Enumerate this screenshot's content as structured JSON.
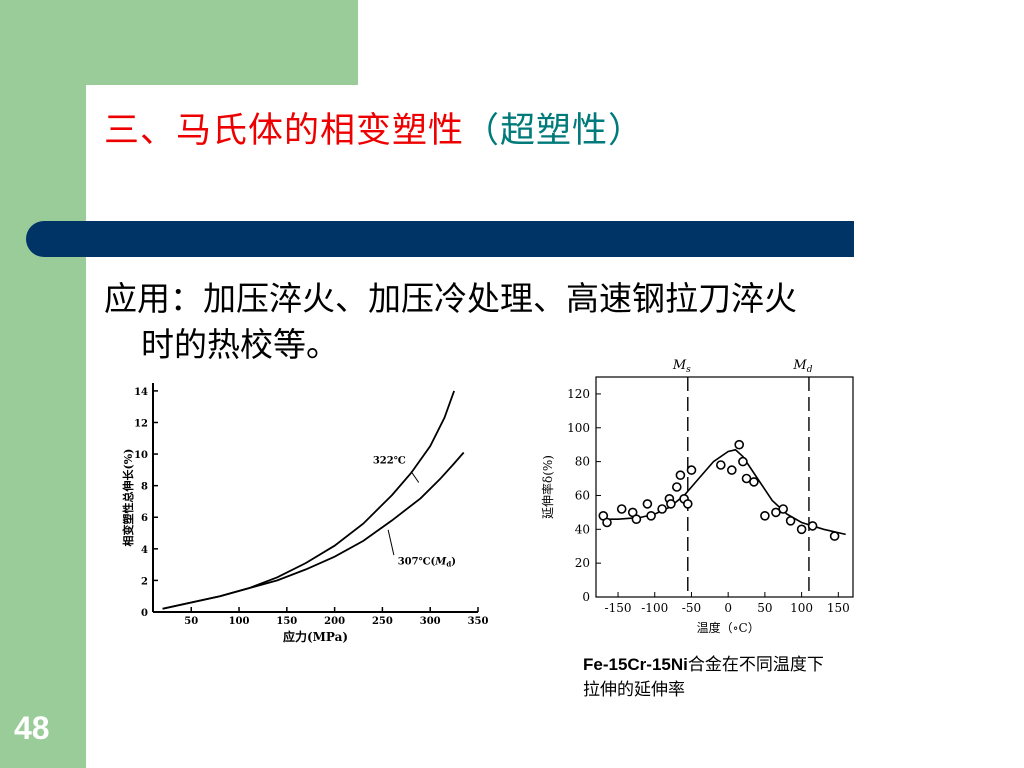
{
  "slide": {
    "number": "48",
    "title_red": "三、马氏体的相变塑性",
    "title_teal": "（超塑性）",
    "body_line1": "应用：加压淬火、加压冷处理、高速钢拉刀淬火",
    "body_line2": "时的热校等。",
    "caption_line1_bold": "Fe-15Cr-15Ni",
    "caption_line1": "合金在不同温度下",
    "caption_line2": "拉伸的延伸率"
  },
  "colors": {
    "green": "#99cc99",
    "navy": "#003366",
    "title_red": "#ee0000",
    "title_teal": "#007a7a"
  },
  "chart_data": [
    {
      "type": "line",
      "title": "",
      "xlabel": "应力(MPa)",
      "ylabel": "相变塑性总伸长(%)",
      "x_ticks": [
        50,
        100,
        150,
        200,
        250,
        300,
        350
      ],
      "y_ticks": [
        0,
        2,
        4,
        6,
        8,
        10,
        12,
        14
      ],
      "xlim": [
        10,
        350
      ],
      "ylim": [
        0,
        14.5
      ],
      "series": [
        {
          "name": "322℃",
          "x": [
            20,
            50,
            80,
            110,
            140,
            170,
            200,
            230,
            260,
            280,
            300,
            315,
            325
          ],
          "y": [
            0.2,
            0.6,
            1.0,
            1.5,
            2.2,
            3.1,
            4.2,
            5.6,
            7.4,
            8.8,
            10.5,
            12.3,
            14.0
          ]
        },
        {
          "name": "307℃(",
          "x": [
            20,
            50,
            80,
            110,
            140,
            170,
            200,
            230,
            260,
            290,
            310,
            325,
            335
          ],
          "y": [
            0.2,
            0.6,
            1.0,
            1.5,
            2.0,
            2.7,
            3.5,
            4.5,
            5.8,
            7.2,
            8.4,
            9.4,
            10.1
          ]
        }
      ]
    },
    {
      "type": "scatter",
      "title": "",
      "xlabel": "温度（∘C）",
      "ylabel": "延伸率δ(%)",
      "x_ticks": [
        -150,
        -100,
        -50,
        0,
        50,
        100,
        150
      ],
      "y_ticks": [
        0,
        20,
        40,
        60,
        80,
        100,
        120
      ],
      "xlim": [
        -180,
        170
      ],
      "ylim": [
        0,
        130
      ],
      "vlines": [
        {
          "label": "M",
          "sub": "s",
          "x": -55
        },
        {
          "label": "M",
          "sub": "d",
          "x": 110
        }
      ],
      "points": {
        "x": [
          -170,
          -165,
          -145,
          -130,
          -125,
          -110,
          -105,
          -90,
          -80,
          -78,
          -70,
          -65,
          -60,
          -55,
          -50,
          -10,
          5,
          15,
          20,
          25,
          35,
          50,
          65,
          75,
          85,
          100,
          115,
          145
        ],
        "y": [
          48,
          44,
          52,
          50,
          46,
          55,
          48,
          52,
          58,
          55,
          65,
          72,
          58,
          55,
          75,
          78,
          75,
          90,
          80,
          70,
          68,
          48,
          50,
          52,
          45,
          40,
          42,
          36
        ]
      },
      "curve": {
        "x": [
          -170,
          -150,
          -120,
          -100,
          -80,
          -60,
          -40,
          -20,
          0,
          10,
          20,
          40,
          60,
          80,
          100,
          130,
          160
        ],
        "y": [
          46,
          46,
          47,
          49,
          53,
          60,
          70,
          80,
          86,
          87,
          83,
          70,
          57,
          49,
          44,
          40,
          37
        ]
      }
    }
  ]
}
